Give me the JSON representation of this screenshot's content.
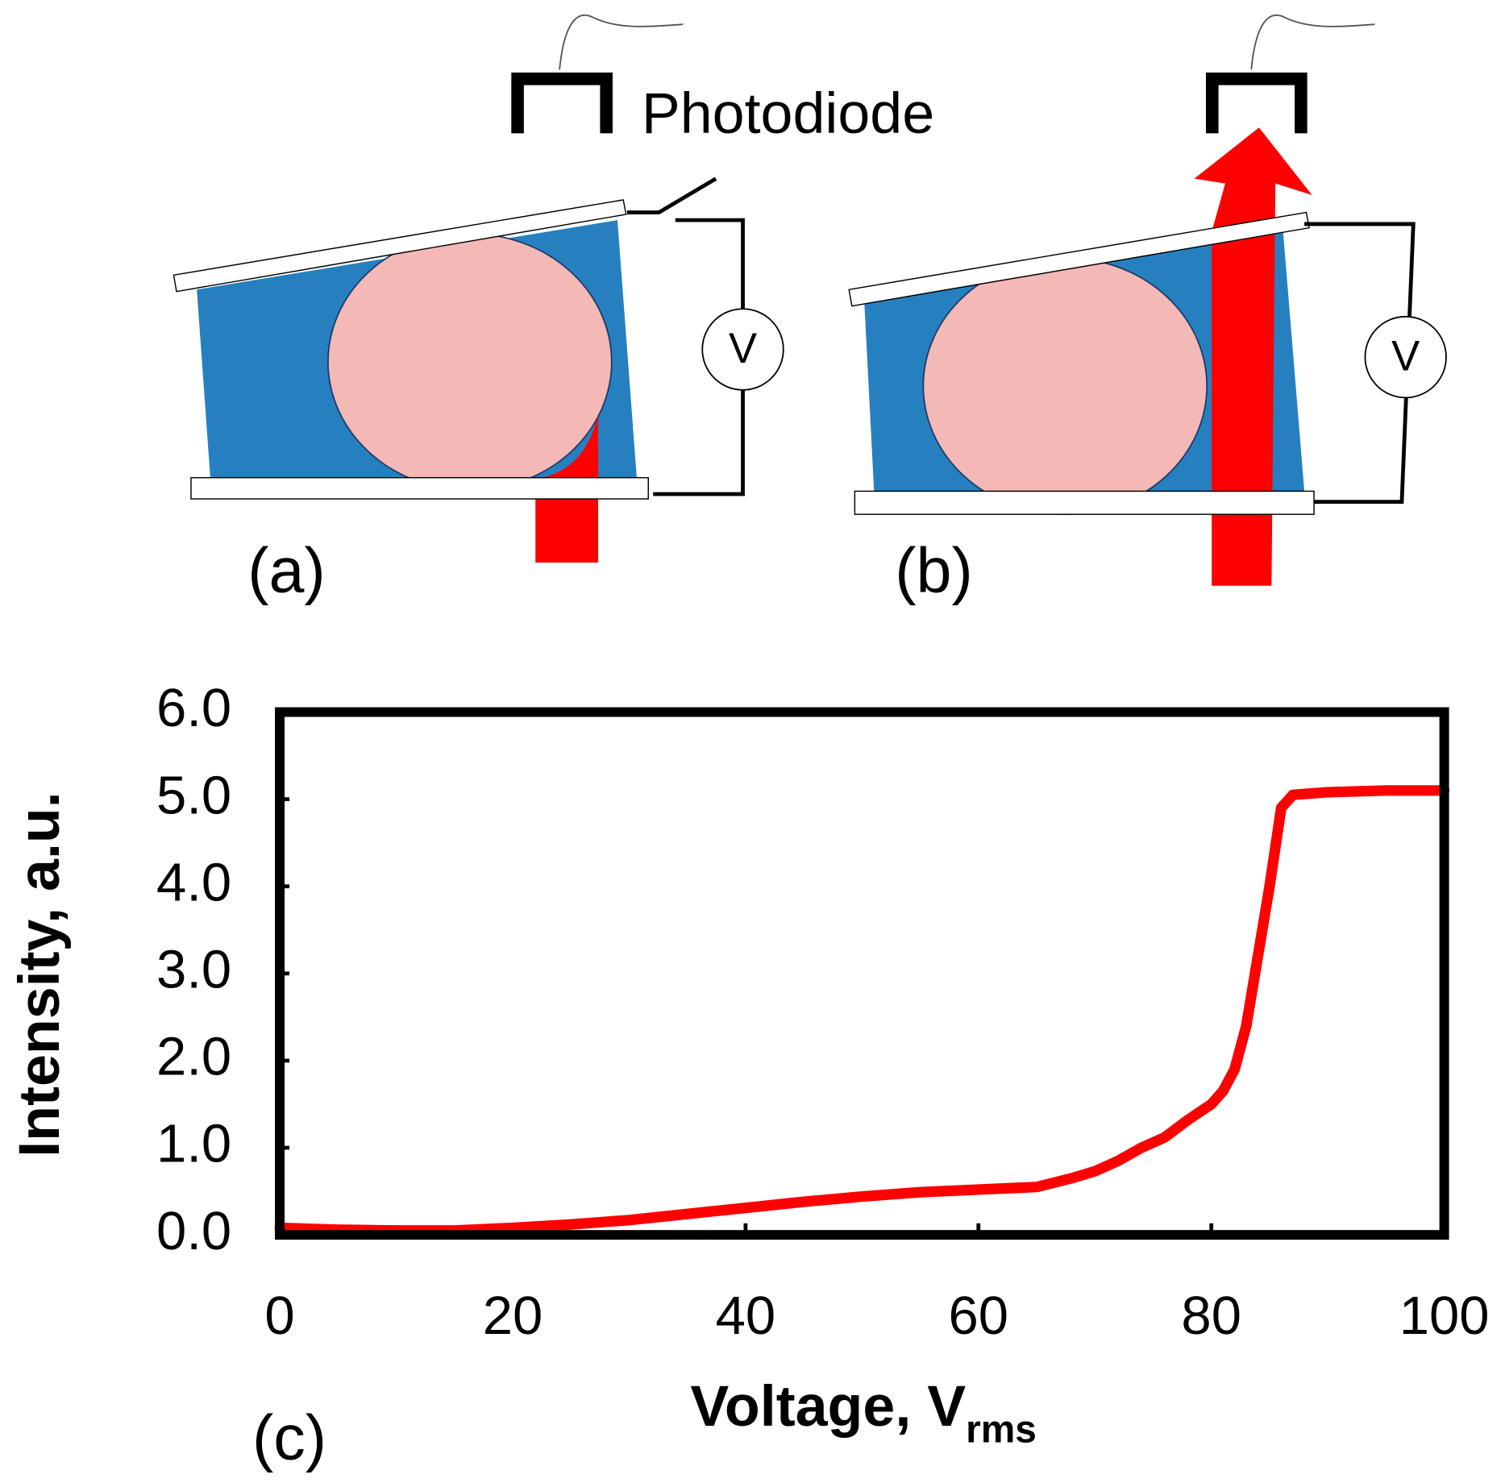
{
  "diagram": {
    "photodiode_label": "Photodiode",
    "panel_labels": [
      "(a)",
      "(b)"
    ],
    "meter_labels": [
      "V",
      "V"
    ]
  },
  "chart_data": {
    "type": "line",
    "panel_label": "(c)",
    "x_label": "Voltage, V",
    "x_label_subscript": "rms",
    "y_label": "Intensity, a.u.",
    "color": "#ff0000",
    "x": [
      0,
      5,
      10,
      15,
      20,
      25,
      30,
      35,
      40,
      45,
      50,
      55,
      60,
      65,
      68,
      70,
      72,
      74,
      76,
      78,
      80,
      81,
      82,
      83,
      84,
      85,
      86,
      87,
      90,
      95,
      100
    ],
    "values": [
      0.08,
      0.06,
      0.05,
      0.05,
      0.08,
      0.12,
      0.17,
      0.24,
      0.31,
      0.38,
      0.44,
      0.49,
      0.52,
      0.55,
      0.65,
      0.73,
      0.85,
      1.0,
      1.12,
      1.32,
      1.5,
      1.65,
      1.9,
      2.4,
      3.2,
      4.0,
      4.9,
      5.05,
      5.08,
      5.1,
      5.1
    ],
    "xlim": [
      0,
      100
    ],
    "xticks": [
      0,
      20,
      40,
      60,
      80,
      100
    ],
    "ylim": [
      0,
      6
    ],
    "yticks": [
      {
        "value": 0,
        "label": "0.0"
      },
      {
        "value": 1,
        "label": "1.0"
      },
      {
        "value": 2,
        "label": "2.0"
      },
      {
        "value": 3,
        "label": "3.0"
      },
      {
        "value": 4,
        "label": "4.0"
      },
      {
        "value": 5,
        "label": "5.0"
      },
      {
        "value": 6,
        "label": "6.0"
      }
    ]
  }
}
